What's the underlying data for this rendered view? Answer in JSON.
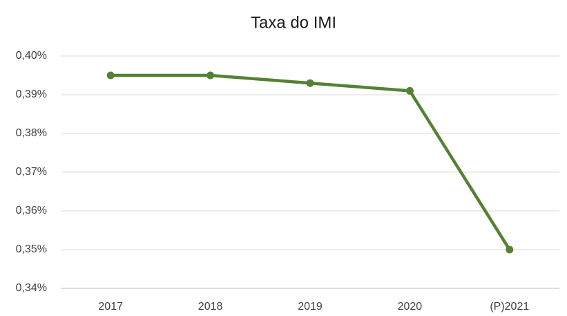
{
  "chart_data": {
    "type": "line",
    "title": "Taxa do IMI",
    "categories": [
      "2017",
      "2018",
      "2019",
      "2020",
      "(P)2021"
    ],
    "series": [
      {
        "color": "#548235",
        "values": [
          0.395,
          0.395,
          0.393,
          0.391,
          0.35
        ]
      }
    ],
    "ylim": [
      0.34,
      0.4
    ],
    "yticks": [
      {
        "value": 0.34,
        "label": "0,34%"
      },
      {
        "value": 0.35,
        "label": "0,35%"
      },
      {
        "value": 0.36,
        "label": "0,36%"
      },
      {
        "value": 0.37,
        "label": "0,37%"
      },
      {
        "value": 0.38,
        "label": "0,38%"
      },
      {
        "value": 0.39,
        "label": "0,39%"
      },
      {
        "value": 0.4,
        "label": "0,40%"
      }
    ],
    "grid": true
  }
}
